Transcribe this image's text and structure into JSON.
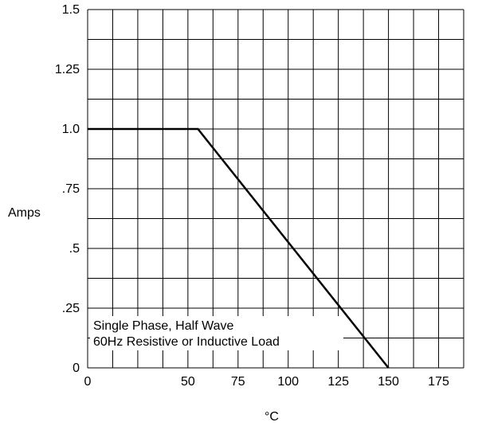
{
  "chart_data": {
    "type": "line",
    "title": "",
    "xlabel": "°C",
    "ylabel": "Amps",
    "xlim": [
      0,
      187.5
    ],
    "ylim": [
      0,
      1.5
    ],
    "x_ticks": [
      0,
      50,
      75,
      100,
      125,
      150,
      175
    ],
    "x_tick_labels": [
      "0",
      "50",
      "75",
      "100",
      "125",
      "150",
      "175"
    ],
    "y_ticks": [
      0,
      0.25,
      0.5,
      0.75,
      1.0,
      1.25,
      1.5
    ],
    "y_tick_labels": [
      "0",
      ".25",
      ".5",
      ".75",
      "1.0",
      "1.25",
      "1.5"
    ],
    "grid_x_step": 12.5,
    "grid_y_step": 0.125,
    "grid": true,
    "series": [
      {
        "x": [
          0,
          55,
          150
        ],
        "y": [
          1.0,
          1.0,
          0
        ]
      }
    ],
    "annotations": [
      "Single Phase, Half Wave",
      "60Hz Resistive or Inductive Load"
    ]
  }
}
